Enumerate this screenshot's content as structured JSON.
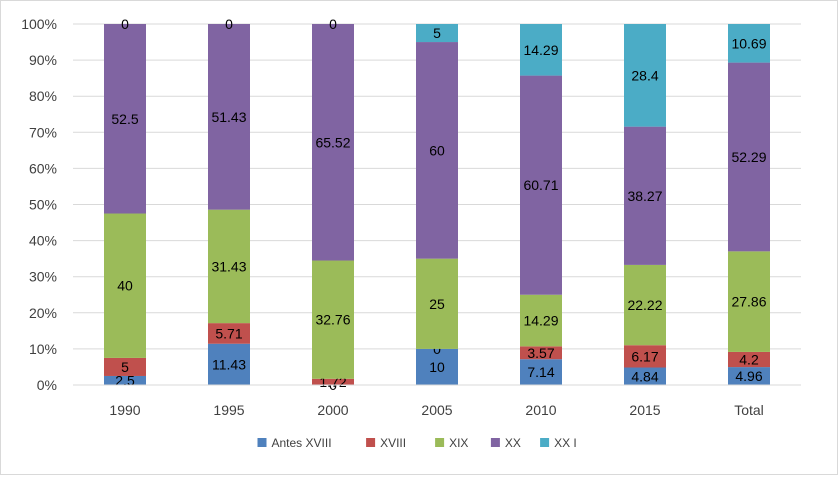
{
  "chart_data": {
    "type": "bar",
    "stacked": "percent",
    "categories": [
      "1990",
      "1995",
      "2000",
      "2005",
      "2010",
      "2015",
      "Total"
    ],
    "series": [
      {
        "name": "Antes XVIII",
        "color": "#4f81bd",
        "values": [
          2.5,
          11.43,
          0,
          10,
          7.14,
          4.84,
          4.96
        ],
        "labels": [
          "2.5",
          "11.43",
          "0",
          "10",
          "7.14",
          "4.84",
          "4.96"
        ]
      },
      {
        "name": "XVIII",
        "color": "#c0504d",
        "values": [
          5,
          5.71,
          1.72,
          0,
          3.57,
          6.17,
          4.2
        ],
        "labels": [
          "5",
          "5.71",
          "1.72",
          "0",
          "3.57",
          "6.17",
          "4.2"
        ]
      },
      {
        "name": "XIX",
        "color": "#9bbb59",
        "values": [
          40,
          31.43,
          32.76,
          25,
          14.29,
          22.22,
          27.86
        ],
        "labels": [
          "40",
          "31.43",
          "32.76",
          "25",
          "14.29",
          "22.22",
          "27.86"
        ]
      },
      {
        "name": "XX",
        "color": "#8064a2",
        "values": [
          52.5,
          51.43,
          65.52,
          60,
          60.71,
          38.27,
          52.29
        ],
        "labels": [
          "52.5",
          "51.43",
          "65.52",
          "60",
          "60.71",
          "38.27",
          "52.29"
        ]
      },
      {
        "name": "XX I",
        "color": "#4bacc6",
        "values": [
          0,
          0,
          0,
          5,
          14.29,
          28.4,
          10.69
        ],
        "labels": [
          "0",
          "0",
          "0",
          "5",
          "14.29",
          "28.4",
          "10.69"
        ]
      }
    ],
    "ylim": [
      0,
      100
    ],
    "yticks": [
      "0%",
      "10%",
      "20%",
      "30%",
      "40%",
      "50%",
      "60%",
      "70%",
      "80%",
      "90%",
      "100%"
    ],
    "title": "",
    "xlabel": "",
    "ylabel": "",
    "grid": true,
    "legend": "bottom"
  }
}
